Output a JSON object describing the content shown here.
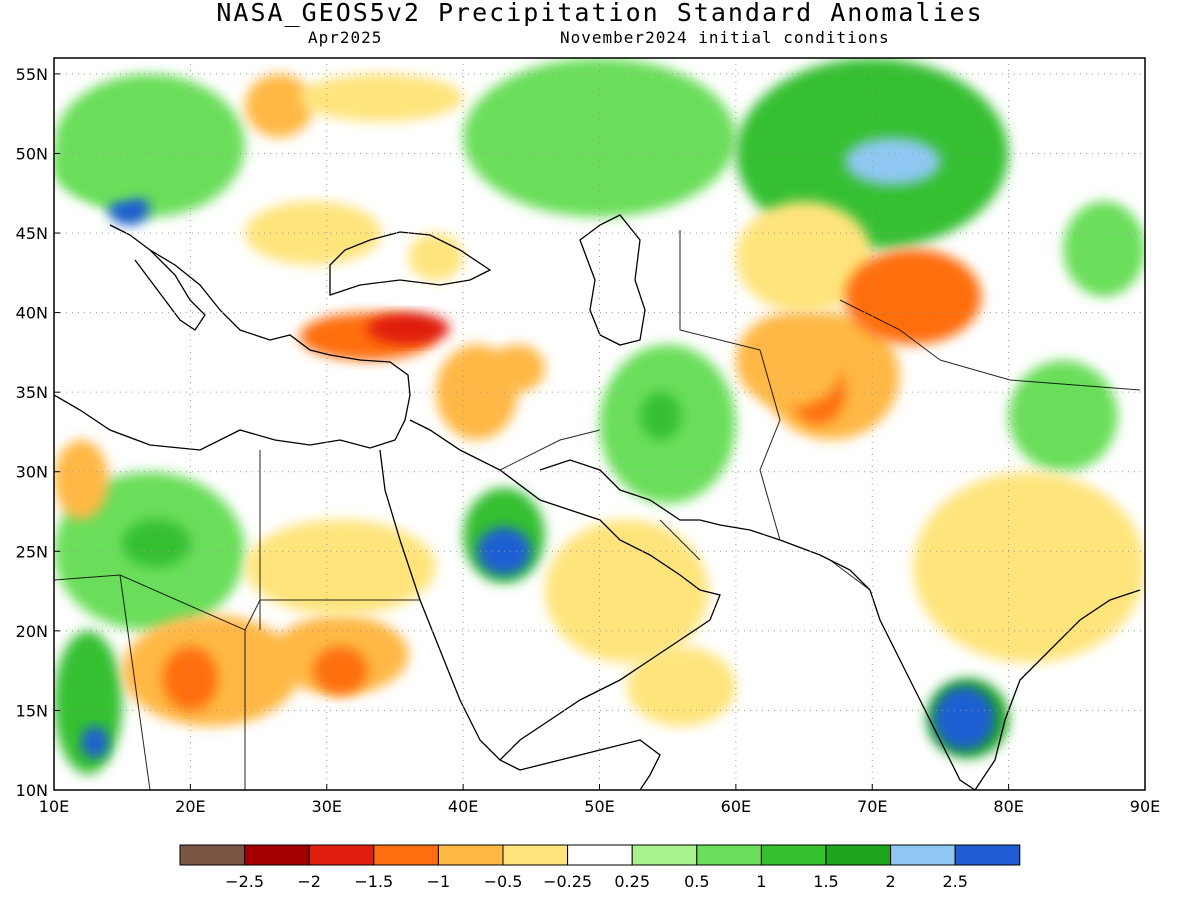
{
  "title": "NASA_GEOS5v2 Precipitation Standard Anomalies",
  "valid_month": "Apr2025",
  "initial_conditions": "November2024 initial conditions",
  "map": {
    "lon_range": [
      10,
      90
    ],
    "lat_range": [
      10,
      56
    ],
    "lat_ticks": [
      {
        "value": 55,
        "label": "55N"
      },
      {
        "value": 50,
        "label": "50N"
      },
      {
        "value": 45,
        "label": "45N"
      },
      {
        "value": 40,
        "label": "40N"
      },
      {
        "value": 35,
        "label": "35N"
      },
      {
        "value": 30,
        "label": "30N"
      },
      {
        "value": 25,
        "label": "25N"
      },
      {
        "value": 20,
        "label": "20N"
      },
      {
        "value": 15,
        "label": "15N"
      },
      {
        "value": 10,
        "label": "10N"
      }
    ],
    "lon_ticks": [
      {
        "value": 10,
        "label": "10E"
      },
      {
        "value": 20,
        "label": "20E"
      },
      {
        "value": 30,
        "label": "30E"
      },
      {
        "value": 40,
        "label": "40E"
      },
      {
        "value": 50,
        "label": "50E"
      },
      {
        "value": 60,
        "label": "60E"
      },
      {
        "value": 70,
        "label": "70E"
      },
      {
        "value": 80,
        "label": "80E"
      },
      {
        "value": 90,
        "label": "90E"
      }
    ],
    "grid": "dotted"
  },
  "colorbar": {
    "colors": [
      "#7a5544",
      "#a50000",
      "#e01e10",
      "#ff6e10",
      "#ffb845",
      "#ffe47c",
      "#ffffff",
      "#a8f28e",
      "#6ade5a",
      "#35c030",
      "#1ea41e",
      "#8ec8f2",
      "#1e5ed2"
    ],
    "labels": [
      "−2.5",
      "−2",
      "−1.5",
      "−1",
      "−0.5",
      "−0.25",
      "0.25",
      "0.5",
      "1",
      "1.5",
      "2",
      "2.5"
    ]
  },
  "anomaly_areas": [
    {
      "lon": [
        10,
        24
      ],
      "lat": [
        46,
        55
      ],
      "value": 0.75
    },
    {
      "lon": [
        14,
        17
      ],
      "lat": [
        45.5,
        47.5
      ],
      "value": 2.7
    },
    {
      "lon": [
        24,
        29
      ],
      "lat": [
        51,
        55
      ],
      "value": -0.6
    },
    {
      "lon": [
        28,
        40
      ],
      "lat": [
        52,
        55
      ],
      "value": -0.5
    },
    {
      "lon": [
        40,
        60
      ],
      "lat": [
        46,
        56
      ],
      "value": 0.75
    },
    {
      "lon": [
        60,
        80
      ],
      "lat": [
        44,
        56
      ],
      "value": 1.4
    },
    {
      "lon": [
        68,
        75
      ],
      "lat": [
        48,
        51
      ],
      "value": 2.2
    },
    {
      "lon": [
        24,
        34
      ],
      "lat": [
        43,
        47
      ],
      "value": -0.4
    },
    {
      "lon": [
        28,
        38
      ],
      "lat": [
        37,
        40
      ],
      "value": -1.2
    },
    {
      "lon": [
        33,
        39
      ],
      "lat": [
        38,
        40
      ],
      "value": -1.6
    },
    {
      "lon": [
        38,
        44
      ],
      "lat": [
        32,
        38
      ],
      "value": -0.6
    },
    {
      "lon": [
        42,
        46
      ],
      "lat": [
        35,
        38
      ],
      "value": -1.0
    },
    {
      "lon": [
        50,
        60
      ],
      "lat": [
        28,
        38
      ],
      "value": 0.6
    },
    {
      "lon": [
        53,
        56
      ],
      "lat": [
        32,
        35
      ],
      "value": 1.2
    },
    {
      "lon": [
        60,
        70
      ],
      "lat": [
        40,
        47
      ],
      "value": -0.5
    },
    {
      "lon": [
        62,
        72
      ],
      "lat": [
        32,
        40
      ],
      "value": -0.7
    },
    {
      "lon": [
        68,
        78
      ],
      "lat": [
        38,
        44
      ],
      "value": -1.1
    },
    {
      "lon": [
        64,
        68
      ],
      "lat": [
        33,
        37
      ],
      "value": -1.3
    },
    {
      "lon": [
        80,
        88
      ],
      "lat": [
        30,
        37
      ],
      "value": 0.8
    },
    {
      "lon": [
        73,
        90
      ],
      "lat": [
        18,
        30
      ],
      "value": -0.5
    },
    {
      "lon": [
        10,
        24
      ],
      "lat": [
        20,
        30
      ],
      "value": 0.9
    },
    {
      "lon": [
        15,
        20
      ],
      "lat": [
        24,
        27
      ],
      "value": 1.3
    },
    {
      "lon": [
        10,
        15
      ],
      "lat": [
        11,
        20
      ],
      "value": 1.0
    },
    {
      "lon": [
        12,
        14
      ],
      "lat": [
        12,
        14
      ],
      "value": 2.6
    },
    {
      "lon": [
        15,
        28
      ],
      "lat": [
        14,
        21
      ],
      "value": -0.9
    },
    {
      "lon": [
        18,
        22
      ],
      "lat": [
        15,
        19
      ],
      "value": -1.3
    },
    {
      "lon": [
        26,
        36
      ],
      "lat": [
        16,
        21
      ],
      "value": -1.0
    },
    {
      "lon": [
        29,
        33
      ],
      "lat": [
        16,
        19
      ],
      "value": -1.3
    },
    {
      "lon": [
        24,
        38
      ],
      "lat": [
        21,
        27
      ],
      "value": -0.4
    },
    {
      "lon": [
        40,
        46
      ],
      "lat": [
        23,
        29
      ],
      "value": 1.0
    },
    {
      "lon": [
        41,
        45
      ],
      "lat": [
        23.5,
        26.5
      ],
      "value": 2.7
    },
    {
      "lon": [
        46,
        58
      ],
      "lat": [
        18,
        27
      ],
      "value": -0.5
    },
    {
      "lon": [
        52,
        60
      ],
      "lat": [
        14,
        19
      ],
      "value": -0.4
    },
    {
      "lon": [
        74,
        80
      ],
      "lat": [
        12,
        17
      ],
      "value": 1.5
    },
    {
      "lon": [
        74.5,
        79
      ],
      "lat": [
        12.5,
        16.5
      ],
      "value": 2.7
    },
    {
      "lon": [
        10,
        14
      ],
      "lat": [
        27,
        32
      ],
      "value": -0.6
    },
    {
      "lon": [
        10,
        18
      ],
      "lat": [
        47,
        51
      ],
      "value": 0.9
    },
    {
      "lon": [
        36,
        40
      ],
      "lat": [
        42,
        45
      ],
      "value": -0.3
    },
    {
      "lon": [
        84,
        90
      ],
      "lat": [
        41,
        47
      ],
      "value": 0.6
    },
    {
      "lon": [
        60,
        68
      ],
      "lat": [
        34,
        40
      ],
      "value": -0.6
    }
  ]
}
